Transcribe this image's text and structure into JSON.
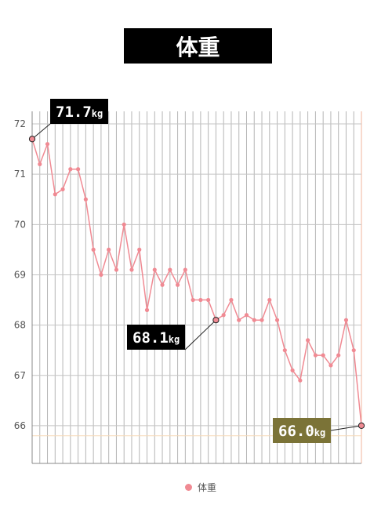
{
  "title": "体重",
  "chart_data": {
    "type": "line",
    "ylim": [
      65.25,
      72.25
    ],
    "yticks": [
      66,
      67,
      68,
      69,
      70,
      71,
      72
    ],
    "grid": true,
    "reference_line": 65.8,
    "series": [
      {
        "name": "体重",
        "color": "#f08a93",
        "values": [
          71.7,
          71.2,
          71.6,
          70.6,
          70.7,
          71.1,
          71.1,
          70.5,
          69.5,
          69.0,
          69.5,
          69.1,
          70.0,
          69.1,
          69.5,
          68.3,
          69.1,
          68.8,
          69.1,
          68.8,
          69.1,
          68.5,
          68.5,
          68.5,
          68.1,
          68.2,
          68.5,
          68.1,
          68.2,
          68.1,
          68.1,
          68.5,
          68.1,
          67.5,
          67.1,
          66.9,
          67.7,
          67.4,
          67.4,
          67.2,
          67.4,
          68.1,
          67.5,
          66.0
        ]
      }
    ],
    "callouts": [
      {
        "index": 0,
        "value": "71.7",
        "unit": "kg",
        "bg": "#000000"
      },
      {
        "index": 24,
        "value": "68.1",
        "unit": "kg",
        "bg": "#000000"
      },
      {
        "index": 43,
        "value": "66.0",
        "unit": "kg",
        "bg": "#7b7337"
      }
    ],
    "legend_position": "bottom"
  }
}
